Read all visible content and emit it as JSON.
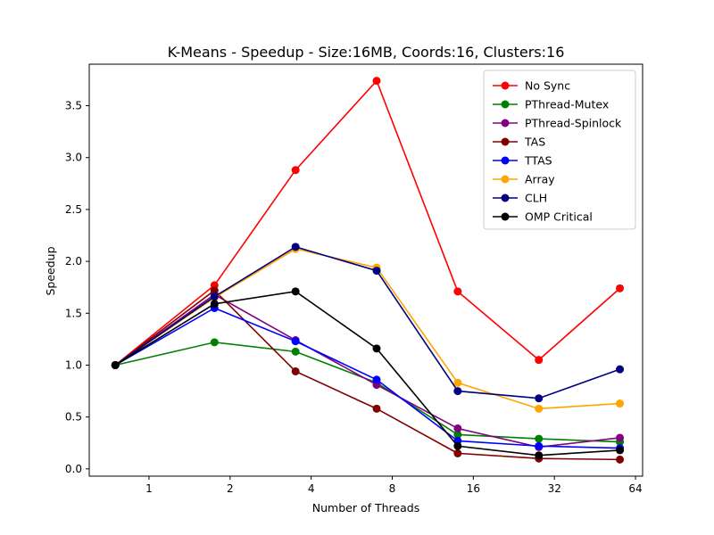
{
  "chart_data": {
    "type": "line",
    "title": "K-Means - Speedup - Size:16MB, Coords:16, Clusters:16",
    "xlabel": "Number of Threads",
    "ylabel": "Speedup",
    "x_scale": "log2",
    "xlim": [
      0.6,
      68
    ],
    "ylim": [
      -0.07,
      3.9
    ],
    "x_ticks": [
      1,
      2,
      4,
      8,
      16,
      32,
      64
    ],
    "x_tick_labels": [
      "1",
      "2",
      "4",
      "8",
      "16",
      "32",
      "64"
    ],
    "y_ticks": [
      0.0,
      0.5,
      1.0,
      1.5,
      2.0,
      2.5,
      3.0,
      3.5
    ],
    "y_tick_labels": [
      "0.0",
      "0.5",
      "1.0",
      "1.5",
      "2.0",
      "2.5",
      "3.0",
      "3.5"
    ],
    "x": [
      0.75,
      1.75,
      3.5,
      7.0,
      14.0,
      28.0,
      56.0
    ],
    "legend_position": "upper-right",
    "grid": false,
    "series": [
      {
        "name": "No Sync",
        "color": "#ff0000",
        "values": [
          1.0,
          1.77,
          2.88,
          3.74,
          1.71,
          1.05,
          1.74
        ]
      },
      {
        "name": "PThread-Mutex",
        "color": "#008000",
        "values": [
          1.0,
          1.22,
          1.13,
          0.83,
          0.33,
          0.29,
          0.26
        ]
      },
      {
        "name": "PThread-Spinlock",
        "color": "#800080",
        "values": [
          1.0,
          1.68,
          1.24,
          0.81,
          0.39,
          0.21,
          0.3
        ]
      },
      {
        "name": "TAS",
        "color": "#800000",
        "values": [
          1.0,
          1.72,
          0.94,
          0.58,
          0.15,
          0.1,
          0.09
        ]
      },
      {
        "name": "TTAS",
        "color": "#0000ff",
        "values": [
          1.0,
          1.55,
          1.23,
          0.86,
          0.27,
          0.22,
          0.2
        ]
      },
      {
        "name": "Array",
        "color": "#ffa500",
        "values": [
          1.0,
          1.65,
          2.12,
          1.94,
          0.83,
          0.58,
          0.63
        ]
      },
      {
        "name": "CLH",
        "color": "#000080",
        "values": [
          1.0,
          1.66,
          2.14,
          1.91,
          0.75,
          0.68,
          0.96
        ]
      },
      {
        "name": "OMP Critical",
        "color": "#000000",
        "values": [
          1.0,
          1.59,
          1.71,
          1.16,
          0.22,
          0.13,
          0.18
        ]
      }
    ]
  }
}
